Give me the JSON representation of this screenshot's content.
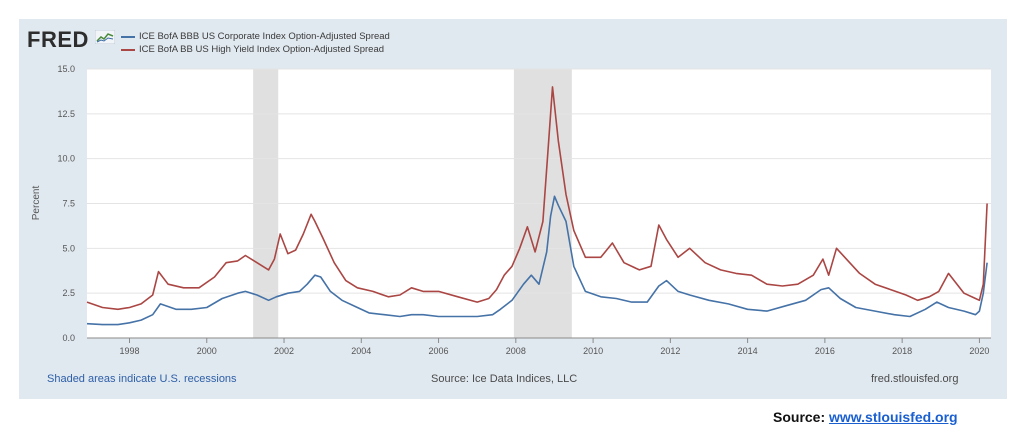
{
  "logo": {
    "text": "FRED",
    "icon": "fred-chart-icon"
  },
  "legend": [
    {
      "label": "ICE BofA BBB US Corporate Index Option-Adjusted Spread",
      "color": "#4572a7"
    },
    {
      "label": "ICE BofA BB US High Yield Index Option-Adjusted Spread",
      "color": "#aa4643"
    }
  ],
  "footer": {
    "recessions_note": "Shaded areas indicate U.S. recessions",
    "source": "Source: Ice Data Indices, LLC",
    "site": "fred.stlouisfed.org"
  },
  "source_line": {
    "prefix": "Source: ",
    "link": "www.stlouisfed.org"
  },
  "chart_data": {
    "type": "line",
    "ylabel": "Percent",
    "xlim": [
      1996.9,
      2020.3
    ],
    "ylim": [
      0,
      15
    ],
    "y_ticks": [
      "0.0",
      "2.5",
      "5.0",
      "7.5",
      "10.0",
      "12.5",
      "15.0"
    ],
    "x_ticks": [
      "1998",
      "2000",
      "2002",
      "2004",
      "2006",
      "2008",
      "2010",
      "2012",
      "2014",
      "2016",
      "2018",
      "2020"
    ],
    "grid": true,
    "recessions": [
      [
        2001.2,
        2001.85
      ],
      [
        2007.95,
        2009.45
      ]
    ],
    "series": [
      {
        "name": "ICE BofA BBB US Corporate Index Option-Adjusted Spread",
        "color": "#4572a7",
        "x": [
          1996.9,
          1997.3,
          1997.7,
          1998.0,
          1998.3,
          1998.6,
          1998.8,
          1999.2,
          1999.6,
          2000.0,
          2000.4,
          2000.8,
          2001.0,
          2001.3,
          2001.6,
          2001.8,
          2002.1,
          2002.4,
          2002.6,
          2002.8,
          2002.95,
          2003.2,
          2003.5,
          2003.9,
          2004.2,
          2004.6,
          2005.0,
          2005.3,
          2005.6,
          2006.0,
          2006.5,
          2007.0,
          2007.4,
          2007.6,
          2007.9,
          2008.2,
          2008.4,
          2008.6,
          2008.8,
          2008.9,
          2009.0,
          2009.1,
          2009.3,
          2009.5,
          2009.8,
          2010.2,
          2010.6,
          2011.0,
          2011.4,
          2011.7,
          2011.9,
          2012.2,
          2012.5,
          2013.0,
          2013.5,
          2014.0,
          2014.5,
          2015.0,
          2015.5,
          2015.9,
          2016.1,
          2016.4,
          2016.8,
          2017.3,
          2017.8,
          2018.2,
          2018.6,
          2018.9,
          2019.2,
          2019.6,
          2019.9,
          2020.0,
          2020.1,
          2020.2
        ],
        "values": [
          0.8,
          0.75,
          0.75,
          0.85,
          1.0,
          1.3,
          1.9,
          1.6,
          1.6,
          1.7,
          2.2,
          2.5,
          2.6,
          2.4,
          2.1,
          2.3,
          2.5,
          2.6,
          3.0,
          3.5,
          3.4,
          2.6,
          2.1,
          1.7,
          1.4,
          1.3,
          1.2,
          1.3,
          1.3,
          1.2,
          1.2,
          1.2,
          1.3,
          1.6,
          2.1,
          3.0,
          3.5,
          3.0,
          4.8,
          6.8,
          7.9,
          7.4,
          6.5,
          4.0,
          2.6,
          2.3,
          2.2,
          2.0,
          2.0,
          2.9,
          3.2,
          2.6,
          2.4,
          2.1,
          1.9,
          1.6,
          1.5,
          1.8,
          2.1,
          2.7,
          2.8,
          2.2,
          1.7,
          1.5,
          1.3,
          1.2,
          1.6,
          2.0,
          1.7,
          1.5,
          1.3,
          1.5,
          2.5,
          4.2
        ]
      },
      {
        "name": "ICE BofA BB US High Yield Index Option-Adjusted Spread",
        "color": "#aa4643",
        "x": [
          1996.9,
          1997.3,
          1997.7,
          1998.0,
          1998.3,
          1998.6,
          1998.75,
          1999.0,
          1999.4,
          1999.8,
          2000.2,
          2000.5,
          2000.8,
          2001.0,
          2001.3,
          2001.6,
          2001.75,
          2001.9,
          2002.1,
          2002.3,
          2002.5,
          2002.7,
          2002.8,
          2003.0,
          2003.3,
          2003.6,
          2003.9,
          2004.3,
          2004.7,
          2005.0,
          2005.3,
          2005.6,
          2006.0,
          2006.5,
          2007.0,
          2007.3,
          2007.5,
          2007.7,
          2007.9,
          2008.1,
          2008.3,
          2008.5,
          2008.7,
          2008.85,
          2008.95,
          2009.1,
          2009.3,
          2009.5,
          2009.8,
          2010.2,
          2010.5,
          2010.8,
          2011.2,
          2011.5,
          2011.7,
          2011.9,
          2012.2,
          2012.5,
          2012.9,
          2013.3,
          2013.7,
          2014.1,
          2014.5,
          2014.9,
          2015.3,
          2015.7,
          2015.95,
          2016.1,
          2016.3,
          2016.6,
          2016.9,
          2017.3,
          2017.7,
          2018.1,
          2018.4,
          2018.7,
          2018.95,
          2019.2,
          2019.6,
          2019.9,
          2020.0,
          2020.1,
          2020.2
        ],
        "values": [
          2.0,
          1.7,
          1.6,
          1.7,
          1.9,
          2.4,
          3.7,
          3.0,
          2.8,
          2.8,
          3.4,
          4.2,
          4.3,
          4.6,
          4.2,
          3.8,
          4.4,
          5.8,
          4.7,
          4.9,
          5.8,
          6.9,
          6.5,
          5.6,
          4.2,
          3.2,
          2.8,
          2.6,
          2.3,
          2.4,
          2.8,
          2.6,
          2.6,
          2.3,
          2.0,
          2.2,
          2.7,
          3.5,
          4.0,
          5.0,
          6.2,
          4.8,
          6.5,
          11.0,
          14.0,
          11.0,
          8.0,
          6.0,
          4.5,
          4.5,
          5.3,
          4.2,
          3.8,
          4.0,
          6.3,
          5.5,
          4.5,
          5.0,
          4.2,
          3.8,
          3.6,
          3.5,
          3.0,
          2.9,
          3.0,
          3.5,
          4.4,
          3.5,
          5.0,
          4.3,
          3.6,
          3.0,
          2.7,
          2.4,
          2.1,
          2.3,
          2.6,
          3.6,
          2.5,
          2.2,
          2.1,
          3.0,
          7.5
        ]
      }
    ]
  }
}
